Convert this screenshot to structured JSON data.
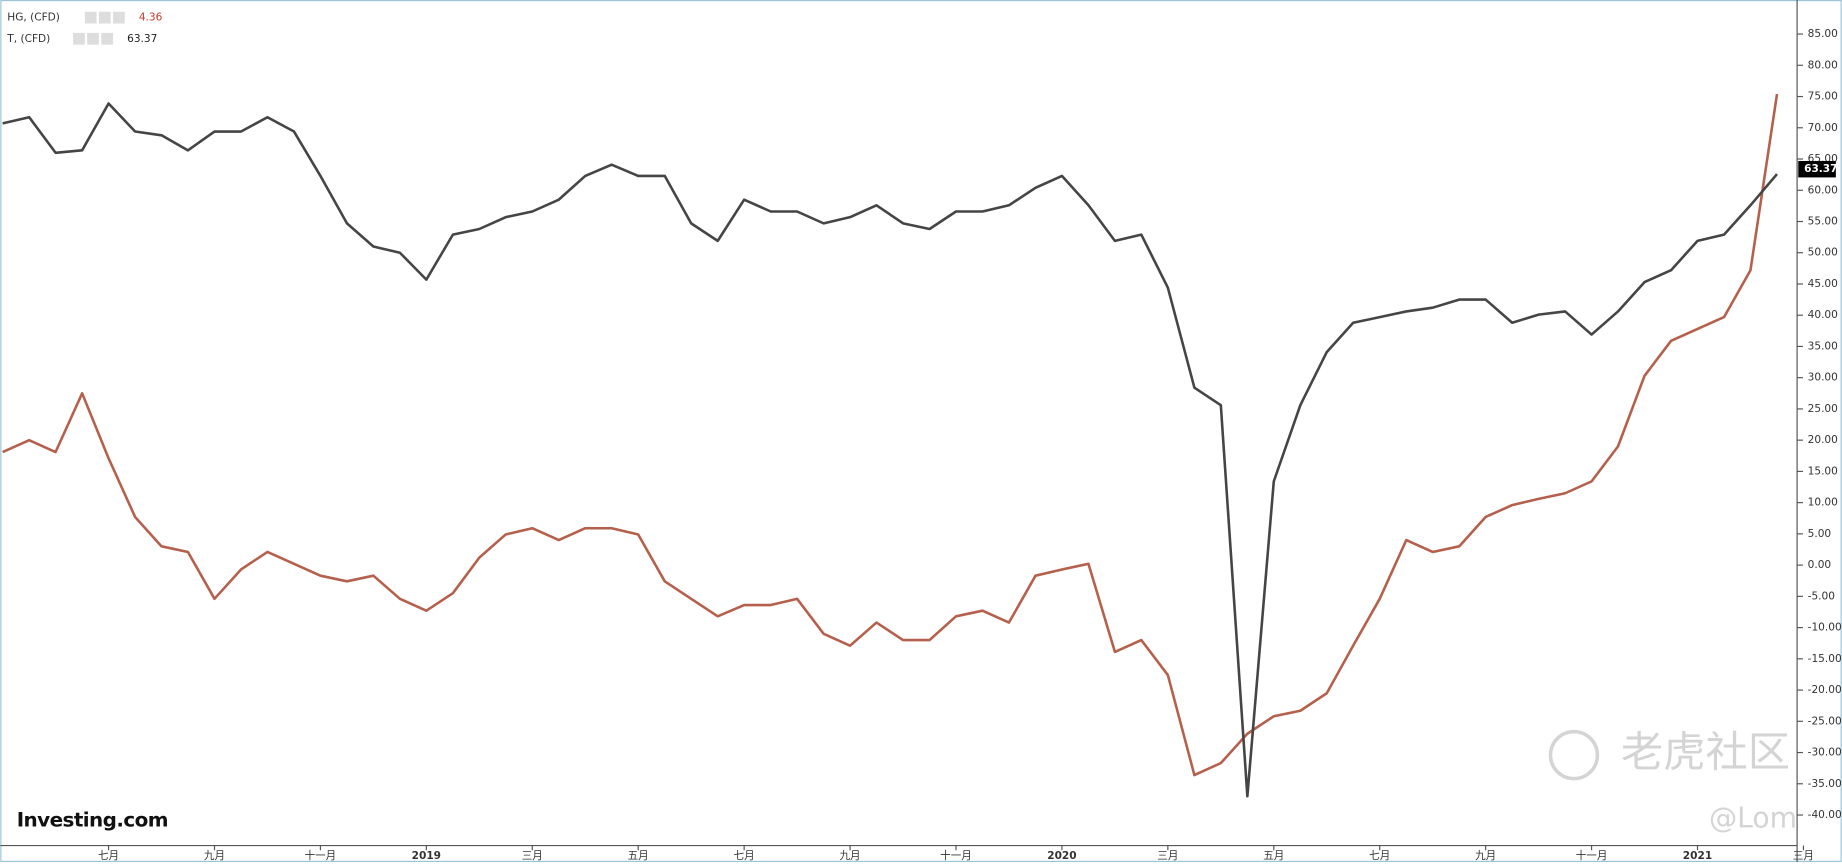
{
  "chart_data": {
    "type": "line",
    "legend_position": "top-left",
    "watermarks": [
      "Investing.com",
      "老虎社区",
      "@Lom"
    ],
    "categories": [
      null,
      null,
      null,
      null,
      "七月",
      null,
      null,
      null,
      "九月",
      null,
      null,
      null,
      "十一月",
      null,
      null,
      null,
      "2019",
      null,
      null,
      null,
      "三月",
      null,
      null,
      null,
      "五月",
      null,
      null,
      null,
      "七月",
      null,
      null,
      null,
      "九月",
      null,
      null,
      null,
      "十一月",
      null,
      null,
      null,
      "2020",
      null,
      null,
      null,
      "三月",
      null,
      null,
      null,
      "五月",
      null,
      null,
      null,
      "七月",
      null,
      null,
      null,
      "九月",
      null,
      null,
      null,
      "十一月",
      null,
      null,
      null,
      "2021",
      null,
      null,
      null,
      "三月"
    ],
    "series": [
      {
        "name": "HG, (CFD)",
        "color": "#b5604c",
        "last_value": 4.36,
        "values": [
          18.1,
          20,
          18.1,
          27.5,
          17.1,
          7.7,
          3,
          2.1,
          -5.4,
          -0.7,
          2.1,
          0.2,
          -1.7,
          -2.6,
          -1.7,
          -5.4,
          -7.3,
          -4.5,
          1.2,
          4.9,
          5.9,
          4,
          5.9,
          5.9,
          4.9,
          -2.6,
          -5.4,
          -8.2,
          -6.4,
          -6.4,
          -5.4,
          -11,
          -12.9,
          -9.2,
          -12,
          -12,
          -8.2,
          -7.3,
          -9.2,
          -1.7,
          -0.7,
          0.2,
          -13.9,
          -12,
          -17.6,
          -33.6,
          -31.7,
          -27,
          -24.2,
          -23.3,
          -20.5,
          -12.9,
          -5.4,
          4,
          2.1,
          3,
          7.7,
          9.6,
          10.6,
          11.5,
          13.4,
          19,
          30.3,
          35.9,
          37.8,
          39.7,
          47.2,
          75.4,
          null
        ]
      },
      {
        "name": "T, (CFD)",
        "color": "#454545",
        "last_value": 63.37,
        "values": [
          70.7,
          71.7,
          66,
          66.4,
          73.9,
          69.4,
          68.8,
          66.4,
          69.4,
          69.4,
          71.7,
          69.4,
          62.3,
          54.7,
          51,
          50,
          45.7,
          52.9,
          53.8,
          55.7,
          56.6,
          58.5,
          62.3,
          64.1,
          62.3,
          62.3,
          54.7,
          51.9,
          58.5,
          56.6,
          56.6,
          54.7,
          55.7,
          57.6,
          54.7,
          53.8,
          56.6,
          56.6,
          57.6,
          60.4,
          62.3,
          57.6,
          51.9,
          52.9,
          44.4,
          28.4,
          25.6,
          -37,
          13.4,
          25.6,
          34.1,
          38.8,
          39.7,
          40.6,
          41.2,
          42.5,
          42.5,
          38.8,
          40.1,
          40.6,
          36.9,
          40.6,
          45.3,
          47.2,
          51.9,
          52.9,
          57.6,
          62.6,
          null
        ]
      }
    ],
    "ylim": [
      -45,
      90
    ],
    "yticks": [
      {
        "value": -40,
        "label": "-40.00"
      },
      {
        "value": -35,
        "label": "-35.00"
      },
      {
        "value": -30,
        "label": "-30.00"
      },
      {
        "value": -25,
        "label": "-25.00"
      },
      {
        "value": -20,
        "label": "-20.00"
      },
      {
        "value": -15,
        "label": "-15.00"
      },
      {
        "value": -10,
        "label": "-10.00"
      },
      {
        "value": -5,
        "label": "-5.00"
      },
      {
        "value": 0,
        "label": "0.00"
      },
      {
        "value": 5,
        "label": "5.00"
      },
      {
        "value": 10,
        "label": "10.00"
      },
      {
        "value": 15,
        "label": "15.00"
      },
      {
        "value": 20,
        "label": "20.00"
      },
      {
        "value": 25,
        "label": "25.00"
      },
      {
        "value": 30,
        "label": "30.00"
      },
      {
        "value": 35,
        "label": "35.00"
      },
      {
        "value": 40,
        "label": "40.00"
      },
      {
        "value": 45,
        "label": "45.00"
      },
      {
        "value": 50,
        "label": "50.00"
      },
      {
        "value": 55,
        "label": "55.00"
      },
      {
        "value": 60,
        "label": "60.00"
      },
      {
        "value": 65,
        "label": "65.00"
      },
      {
        "value": 70,
        "label": "70.00"
      },
      {
        "value": 75,
        "label": "75.00"
      },
      {
        "value": 80,
        "label": "80.00"
      },
      {
        "value": 85,
        "label": "85.00"
      }
    ],
    "grid": false
  }
}
